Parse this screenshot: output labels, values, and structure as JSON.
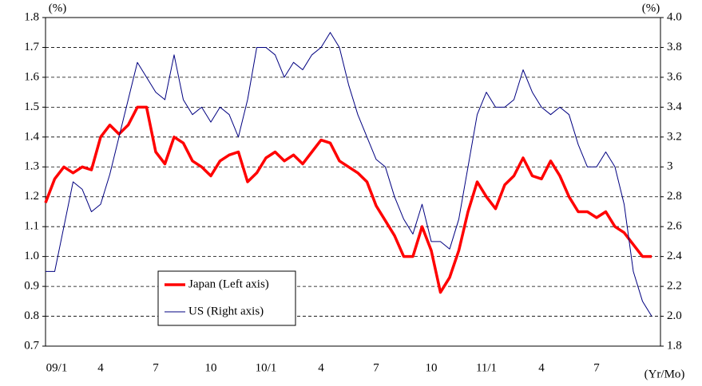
{
  "chart_data": {
    "type": "line",
    "y_label": "(%)",
    "y2_label": "(%)",
    "x_label": "(Yr/Mo)",
    "categories": [
      "09/1",
      null,
      null,
      null,
      null,
      null,
      "4",
      null,
      null,
      null,
      null,
      null,
      "7",
      null,
      null,
      null,
      null,
      null,
      "10",
      null,
      null,
      null,
      null,
      null,
      "10/1",
      null,
      null,
      null,
      null,
      null,
      "4",
      null,
      null,
      null,
      null,
      null,
      "7",
      null,
      null,
      null,
      null,
      null,
      "10",
      null,
      null,
      null,
      null,
      null,
      "11/1",
      null,
      null,
      null,
      null,
      null,
      "4",
      null,
      null,
      null,
      null,
      null,
      "7",
      null,
      null,
      null,
      null,
      null,
      null
    ],
    "series": [
      {
        "name": "Japan (Left axis)",
        "color": "#ff0000",
        "axis": "y",
        "values": [
          1.18,
          1.26,
          1.3,
          1.28,
          1.3,
          1.29,
          1.4,
          1.44,
          1.41,
          1.44,
          1.5,
          1.5,
          1.35,
          1.31,
          1.4,
          1.38,
          1.32,
          1.3,
          1.27,
          1.32,
          1.34,
          1.35,
          1.25,
          1.28,
          1.33,
          1.35,
          1.32,
          1.34,
          1.31,
          1.35,
          1.39,
          1.38,
          1.32,
          1.3,
          1.28,
          1.25,
          1.17,
          1.12,
          1.07,
          1.0,
          1.0,
          1.1,
          1.02,
          0.88,
          0.93,
          1.02,
          1.15,
          1.25,
          1.2,
          1.16,
          1.24,
          1.27,
          1.33,
          1.27,
          1.26,
          1.32,
          1.27,
          1.2,
          1.15,
          1.15,
          1.13,
          1.15,
          1.1,
          1.08,
          1.04,
          1.0,
          1.0
        ]
      },
      {
        "name": "US (Right axis)",
        "color": "#000080",
        "axis": "y2",
        "values": [
          2.3,
          2.3,
          2.6,
          2.9,
          2.85,
          2.7,
          2.75,
          2.95,
          3.2,
          3.45,
          3.7,
          3.6,
          3.5,
          3.45,
          3.75,
          3.45,
          3.35,
          3.4,
          3.3,
          3.4,
          3.35,
          3.2,
          3.45,
          3.8,
          3.8,
          3.75,
          3.6,
          3.7,
          3.65,
          3.75,
          3.8,
          3.9,
          3.8,
          3.55,
          3.35,
          3.2,
          3.05,
          3.0,
          2.8,
          2.65,
          2.55,
          2.75,
          2.5,
          2.5,
          2.45,
          2.65,
          3.0,
          3.35,
          3.5,
          3.4,
          3.4,
          3.45,
          3.65,
          3.5,
          3.4,
          3.35,
          3.4,
          3.35,
          3.15,
          3.0,
          3.0,
          3.1,
          3.0,
          2.75,
          2.3,
          2.1,
          2.0
        ]
      }
    ],
    "ylim": [
      0.7,
      1.8
    ],
    "yticks": [
      0.7,
      0.8,
      0.9,
      {
        "value": 1,
        "label": "1.0"
      },
      1.1,
      1.2,
      1.3,
      1.4,
      1.5,
      1.6,
      1.7,
      1.8
    ],
    "y2lim": [
      1.8,
      4.0
    ],
    "y2ticks": [
      1.8,
      {
        "value": 2,
        "label": "2.0"
      },
      2.2,
      2.4,
      2.6,
      2.8,
      3.0,
      3.2,
      3.4,
      3.6,
      3.8,
      {
        "value": 4,
        "label": "4.0"
      }
    ],
    "grid": true,
    "legend": "lower-left"
  }
}
